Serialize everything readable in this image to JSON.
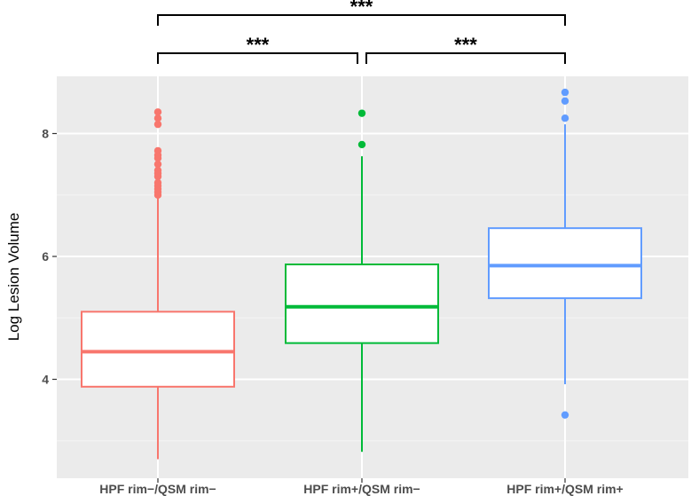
{
  "chart_data": {
    "type": "box",
    "title": "",
    "xlabel": "",
    "ylabel": "Log Lesion Volume",
    "ylim": [
      2.5,
      9.0
    ],
    "yticks": [
      "4",
      "6",
      "8"
    ],
    "grid": true,
    "legend": "none",
    "categories": [
      "HPF rim−/QSM rim−",
      "HPF rim+/QSM rim−",
      "HPF rim+/QSM rim+"
    ],
    "series": [
      {
        "color": "#F8766D",
        "whisker_low": 2.7,
        "q1": 3.88,
        "median": 4.45,
        "q3": 5.1,
        "whisker_high": 6.98,
        "outliers": [
          7.0,
          7.05,
          7.1,
          7.15,
          7.2,
          7.3,
          7.35,
          7.4,
          7.5,
          7.6,
          7.65,
          7.72,
          8.15,
          8.25,
          8.35
        ]
      },
      {
        "color": "#00BA38",
        "whisker_low": 2.82,
        "q1": 4.59,
        "median": 5.18,
        "q3": 5.87,
        "whisker_high": 7.63,
        "outliers": [
          7.82,
          8.33
        ]
      },
      {
        "color": "#619CFF",
        "whisker_low": 3.92,
        "q1": 5.32,
        "median": 5.85,
        "q3": 6.46,
        "whisker_high": 8.15,
        "outliers": [
          3.42,
          8.25,
          8.53,
          8.67
        ]
      }
    ],
    "significance": [
      {
        "from": 0,
        "to": 1,
        "label": "***"
      },
      {
        "from": 1,
        "to": 2,
        "label": "***"
      },
      {
        "from": 0,
        "to": 2,
        "label": "***"
      }
    ]
  }
}
